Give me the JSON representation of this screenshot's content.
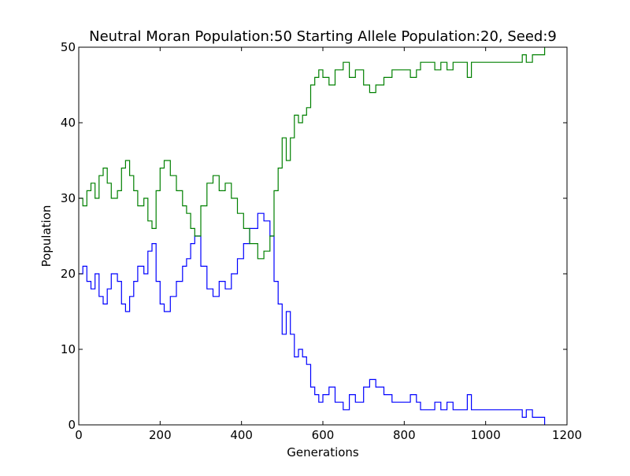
{
  "chart_data": {
    "type": "line",
    "title": "Neutral Moran Population:50 Starting Allele Population:20, Seed:9",
    "xlabel": "Generations",
    "ylabel": "Population",
    "xlim": [
      0,
      1200
    ],
    "ylim": [
      0,
      50
    ],
    "xticks": [
      0,
      200,
      400,
      600,
      800,
      1000,
      1200
    ],
    "yticks": [
      0,
      10,
      20,
      30,
      40,
      50
    ],
    "xtick_labels": [
      "0",
      "200",
      "400",
      "600",
      "800",
      "1000",
      "1200"
    ],
    "ytick_labels": [
      "0",
      "10",
      "20",
      "30",
      "40",
      "50"
    ],
    "grid": false,
    "legend": "none",
    "series": [
      {
        "color": "#0000ff",
        "x": [
          0,
          10,
          20,
          30,
          40,
          50,
          60,
          70,
          80,
          95,
          105,
          115,
          125,
          135,
          145,
          160,
          170,
          180,
          190,
          200,
          210,
          225,
          240,
          255,
          265,
          275,
          285,
          300,
          315,
          330,
          345,
          360,
          375,
          390,
          405,
          420,
          440,
          455,
          470,
          480,
          490,
          500,
          510,
          520,
          530,
          540,
          550,
          560,
          570,
          580,
          590,
          600,
          615,
          630,
          650,
          665,
          680,
          700,
          715,
          730,
          750,
          770,
          790,
          805,
          815,
          830,
          840,
          860,
          875,
          890,
          905,
          920,
          940,
          955,
          965,
          1000,
          1040,
          1080,
          1090,
          1100,
          1115,
          1130,
          1145
        ],
        "y": [
          20,
          21,
          19,
          18,
          20,
          17,
          16,
          18,
          20,
          19,
          16,
          15,
          17,
          19,
          21,
          20,
          23,
          24,
          19,
          16,
          15,
          17,
          19,
          21,
          22,
          24,
          25,
          21,
          18,
          17,
          19,
          18,
          20,
          22,
          24,
          26,
          28,
          27,
          25,
          19,
          16,
          12,
          15,
          12,
          9,
          10,
          9,
          8,
          5,
          4,
          3,
          4,
          5,
          3,
          2,
          4,
          3,
          5,
          6,
          5,
          4,
          3,
          3,
          3,
          4,
          3,
          2,
          2,
          3,
          2,
          3,
          2,
          2,
          4,
          2,
          2,
          2,
          2,
          1,
          2,
          1,
          1,
          0
        ]
      },
      {
        "color": "#008000",
        "x": [
          0,
          10,
          20,
          30,
          40,
          50,
          60,
          70,
          80,
          95,
          105,
          115,
          125,
          135,
          145,
          160,
          170,
          180,
          190,
          200,
          210,
          225,
          240,
          255,
          265,
          275,
          285,
          300,
          315,
          330,
          345,
          360,
          375,
          390,
          405,
          420,
          440,
          455,
          470,
          480,
          490,
          500,
          510,
          520,
          530,
          540,
          550,
          560,
          570,
          580,
          590,
          600,
          615,
          630,
          650,
          665,
          680,
          700,
          715,
          730,
          750,
          770,
          790,
          805,
          815,
          830,
          840,
          860,
          875,
          890,
          905,
          920,
          940,
          955,
          965,
          1000,
          1040,
          1080,
          1090,
          1100,
          1115,
          1130,
          1145
        ],
        "y": [
          30,
          29,
          31,
          32,
          30,
          33,
          34,
          32,
          30,
          31,
          34,
          35,
          33,
          31,
          29,
          30,
          27,
          26,
          31,
          34,
          35,
          33,
          31,
          29,
          28,
          26,
          25,
          29,
          32,
          33,
          31,
          32,
          30,
          28,
          26,
          24,
          22,
          23,
          25,
          31,
          34,
          38,
          35,
          38,
          41,
          40,
          41,
          42,
          45,
          46,
          47,
          46,
          45,
          47,
          48,
          46,
          47,
          45,
          44,
          45,
          46,
          47,
          47,
          47,
          46,
          47,
          48,
          48,
          47,
          48,
          47,
          48,
          48,
          46,
          48,
          48,
          48,
          48,
          49,
          48,
          49,
          49,
          50
        ]
      }
    ]
  }
}
